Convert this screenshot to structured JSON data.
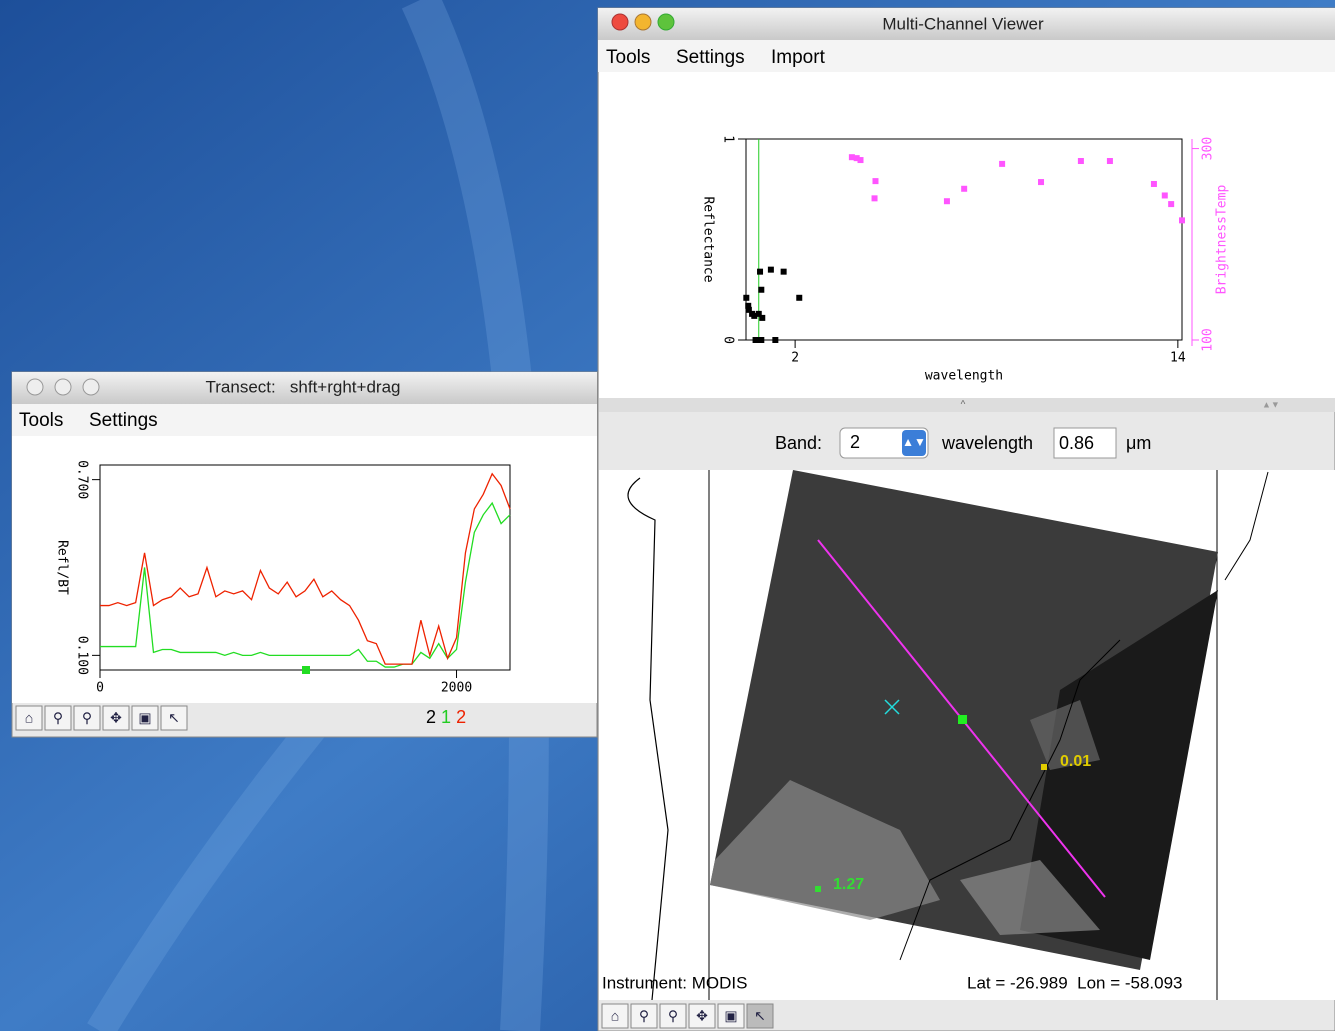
{
  "windows": {
    "transect": {
      "title": "Transect:   shft+rght+drag",
      "menu": [
        "Tools",
        "Settings"
      ],
      "legend": [
        {
          "text": "2",
          "color": "#000000"
        },
        {
          "text": "1",
          "color": "#22cc22"
        },
        {
          "text": "2",
          "color": "#ee2200"
        }
      ]
    },
    "viewer": {
      "title": "Multi-Channel Viewer",
      "menu": [
        "Tools",
        "Settings",
        "Import"
      ],
      "band_label": "Band:",
      "band_value": "2",
      "wavelength_label": "wavelength",
      "wavelength_value": 0.86,
      "unit": "μm",
      "instrument": "Instrument: MODIS",
      "location": "Lat = -26.989  Lon = -58.093",
      "map_labels": [
        {
          "text": "0.01",
          "color": "#e0cc00"
        },
        {
          "text": "1.27",
          "color": "#33dd33"
        }
      ]
    }
  },
  "chart_data": [
    {
      "type": "line",
      "ylabel": "Refl/BT",
      "xlim": [
        0,
        2300
      ],
      "xticks": [
        0,
        2000
      ],
      "ylim": [
        0.05,
        0.75
      ],
      "yticks": [
        {
          "value": 0.1,
          "label": "0.100"
        },
        {
          "value": 0.7,
          "label": "0.700"
        }
      ],
      "x": [
        0,
        50,
        100,
        150,
        200,
        250,
        300,
        350,
        400,
        450,
        500,
        550,
        600,
        650,
        700,
        750,
        800,
        850,
        900,
        950,
        1000,
        1050,
        1100,
        1150,
        1200,
        1250,
        1300,
        1350,
        1400,
        1450,
        1500,
        1550,
        1600,
        1650,
        1700,
        1750,
        1800,
        1850,
        1900,
        1950,
        2000,
        2050,
        2100,
        2150,
        2200,
        2250,
        2300
      ],
      "series": [
        {
          "color": "#22dd22",
          "values": [
            0.13,
            0.13,
            0.13,
            0.13,
            0.13,
            0.4,
            0.11,
            0.12,
            0.12,
            0.11,
            0.11,
            0.11,
            0.11,
            0.11,
            0.1,
            0.11,
            0.1,
            0.1,
            0.11,
            0.1,
            0.1,
            0.1,
            0.1,
            0.1,
            0.1,
            0.1,
            0.1,
            0.1,
            0.1,
            0.12,
            0.08,
            0.08,
            0.06,
            0.06,
            0.07,
            0.07,
            0.11,
            0.09,
            0.14,
            0.09,
            0.12,
            0.35,
            0.52,
            0.58,
            0.62,
            0.55,
            0.58
          ]
        },
        {
          "color": "#ee2200",
          "values": [
            0.27,
            0.27,
            0.28,
            0.27,
            0.28,
            0.45,
            0.27,
            0.29,
            0.3,
            0.33,
            0.3,
            0.31,
            0.4,
            0.3,
            0.32,
            0.31,
            0.32,
            0.29,
            0.39,
            0.33,
            0.31,
            0.35,
            0.3,
            0.32,
            0.36,
            0.3,
            0.32,
            0.29,
            0.27,
            0.22,
            0.15,
            0.14,
            0.07,
            0.07,
            0.07,
            0.07,
            0.22,
            0.1,
            0.2,
            0.09,
            0.16,
            0.45,
            0.6,
            0.65,
            0.72,
            0.68,
            0.6
          ]
        }
      ]
    },
    {
      "type": "scatter",
      "xlabel": "wavelength",
      "ylabel": "Reflectance",
      "y2label": "BrightnessTemp",
      "xlim": [
        0.46,
        14.13
      ],
      "xticks": [
        2,
        14
      ],
      "ylim": [
        0,
        1
      ],
      "yticks": [
        0,
        1
      ],
      "y2lim": [
        100,
        310
      ],
      "y2ticks": [
        100,
        300
      ],
      "series": [
        {
          "color": "#000000",
          "x": [
            0.47,
            0.53,
            0.55,
            0.65,
            0.72,
            0.86,
            0.76,
            0.94,
            0.9,
            0.94,
            0.97,
            1.24,
            1.64,
            2.13,
            1.38
          ],
          "values": [
            0.21,
            0.17,
            0.15,
            0.13,
            0.12,
            0.13,
            0.0,
            0.0,
            0.34,
            0.25,
            0.11,
            0.35,
            0.34,
            0.21,
            0.0
          ]
        },
        {
          "color": "#ff55ff",
          "axis": "y2",
          "x": [
            3.78,
            3.93,
            4.05,
            4.52,
            4.49,
            6.76,
            7.3,
            8.49,
            9.71,
            10.96,
            11.87,
            13.25,
            13.59,
            13.79,
            14.13
          ],
          "values": [
            291,
            290,
            288,
            266,
            248,
            245,
            258,
            284,
            265,
            287,
            287,
            263,
            251,
            242,
            225
          ]
        }
      ]
    }
  ]
}
